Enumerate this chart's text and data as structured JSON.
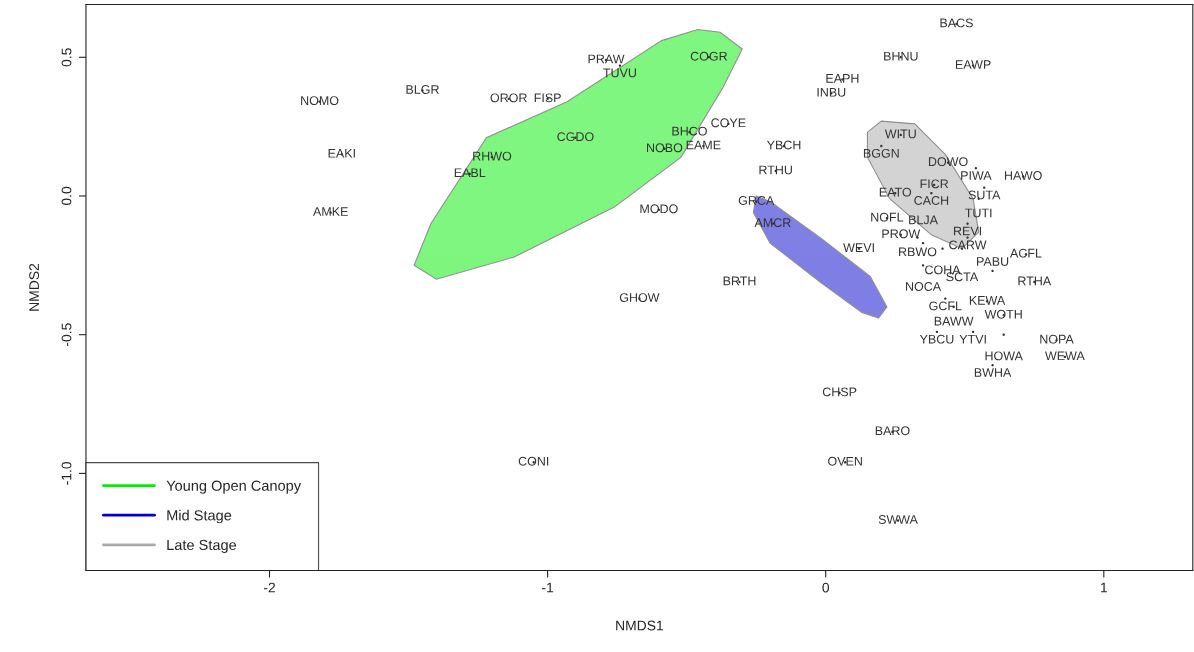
{
  "chart_data": {
    "type": "area",
    "xlabel": "NMDS1",
    "ylabel": "NMDS2",
    "xlim": [
      -2.66,
      1.32
    ],
    "ylim": [
      -1.35,
      0.69
    ],
    "xticks": [
      -2,
      -1,
      0,
      1
    ],
    "yticks": [
      {
        "value": -1.0,
        "label": "-1.0"
      },
      {
        "value": -0.5,
        "label": "-0.5"
      },
      {
        "value": 0.0,
        "label": "0.0"
      },
      {
        "value": 0.5,
        "label": "0.5"
      }
    ],
    "grid": false,
    "legend": "bottom left",
    "series": [
      {
        "name": "Young Open Canopy",
        "color": "#00ee00",
        "x": [
          -0.3,
          -0.38,
          -0.46,
          -0.59,
          -0.93,
          -1.22,
          -1.42,
          -1.48,
          -1.4,
          -1.12,
          -0.76,
          -0.52,
          -0.37
        ],
        "values": [
          0.53,
          0.59,
          0.6,
          0.56,
          0.34,
          0.21,
          -0.1,
          -0.25,
          -0.3,
          -0.22,
          -0.04,
          0.14,
          0.39
        ]
      },
      {
        "name": "Mid Stage",
        "color": "#0000cd",
        "x": [
          -0.25,
          -0.2,
          -0.02,
          0.16,
          0.22,
          0.19,
          0.13,
          -0.02,
          -0.2,
          -0.26
        ],
        "values": [
          0.0,
          -0.02,
          -0.15,
          -0.29,
          -0.4,
          -0.44,
          -0.42,
          -0.31,
          -0.17,
          -0.06
        ]
      },
      {
        "name": "Late Stage",
        "color": "#a9a9a9",
        "x": [
          0.2,
          0.32,
          0.43,
          0.53,
          0.55,
          0.49,
          0.38,
          0.23,
          0.15,
          0.15
        ],
        "values": [
          0.27,
          0.26,
          0.15,
          -0.01,
          -0.13,
          -0.19,
          -0.14,
          -0.01,
          0.14,
          0.23
        ]
      },
      {
        "type": "scatter",
        "marker": "none",
        "color": "#333333",
        "x": [
          0.47,
          0.27,
          0.53,
          0.06,
          0.02,
          -0.79,
          -0.74,
          -0.42,
          -1.82,
          -1.45,
          -1.14,
          -1.0,
          -0.49,
          -0.35,
          -0.44,
          -0.9,
          -0.58,
          -0.15,
          -1.74,
          -1.2,
          -1.28,
          -0.18,
          -1.78,
          -0.6,
          -0.25,
          -0.19,
          0.12,
          -0.31,
          -0.67,
          0.27,
          0.2,
          0.44,
          0.54,
          0.71,
          0.39,
          0.25,
          0.38,
          0.57,
          0.55,
          0.22,
          0.51,
          0.27,
          0.33,
          0.51,
          0.35,
          0.42,
          0.49,
          0.72,
          0.35,
          0.6,
          0.75,
          0.43,
          0.46,
          0.58,
          0.64,
          0.4,
          0.53,
          0.64,
          0.83,
          0.86,
          0.6,
          0.05,
          0.24,
          0.07,
          -1.05,
          0.26
        ],
        "values": [
          0.62,
          0.5,
          0.47,
          0.42,
          0.37,
          0.49,
          0.47,
          0.5,
          0.34,
          0.38,
          0.35,
          0.35,
          0.23,
          0.26,
          0.18,
          0.21,
          0.17,
          0.18,
          0.15,
          0.14,
          0.08,
          0.09,
          -0.06,
          -0.05,
          -0.02,
          -0.1,
          -0.19,
          -0.31,
          -0.37,
          0.22,
          0.18,
          0.12,
          0.1,
          0.07,
          0.04,
          0.01,
          0.01,
          0.03,
          -0.01,
          -0.08,
          -0.1,
          -0.14,
          -0.15,
          -0.15,
          -0.17,
          -0.19,
          -0.19,
          -0.21,
          -0.25,
          -0.27,
          -0.31,
          -0.37,
          -0.4,
          -0.38,
          -0.43,
          -0.49,
          -0.49,
          -0.5,
          -0.52,
          -0.58,
          -0.61,
          -0.71,
          -0.85,
          -0.96,
          -0.96,
          -1.17
        ],
        "value_labels": [
          "BACS",
          "BHNU",
          "EAWP",
          "EAPH",
          "INBU",
          "PRAW",
          "TUVU",
          "COGR",
          "NOMO",
          "BLGR",
          "OROR",
          "FISP",
          "BHCO",
          "COYE",
          "EAME",
          "CGDO",
          "NOBO",
          "YBCH",
          "EAKI",
          "RHWO",
          "EABL",
          "RTHU",
          "AMKE",
          "MODO",
          "GRCA",
          "AMCR",
          "WEVI",
          "BRTH",
          "GHOW",
          "WITU",
          "BGGN",
          "DOWO",
          "PIWA",
          "HAWO",
          "FICR",
          "EATO",
          "CACH",
          "SUTA",
          "TUTI",
          "NOFL",
          "REVI",
          "PROW",
          "RBWO",
          "CARW",
          "BLJA",
          "COHA",
          "SCTA",
          "ACFL",
          "NOCA",
          "PABU",
          "RTHA",
          "GCFL",
          "BAWW",
          "KEWA",
          "WOTH",
          "YBCU",
          "YTVI",
          "HOWA",
          "NOPA",
          "WEWA",
          "BWHA",
          "CHSP",
          "BARO",
          "OVEN",
          "CONI",
          "SWWA"
        ]
      }
    ]
  }
}
